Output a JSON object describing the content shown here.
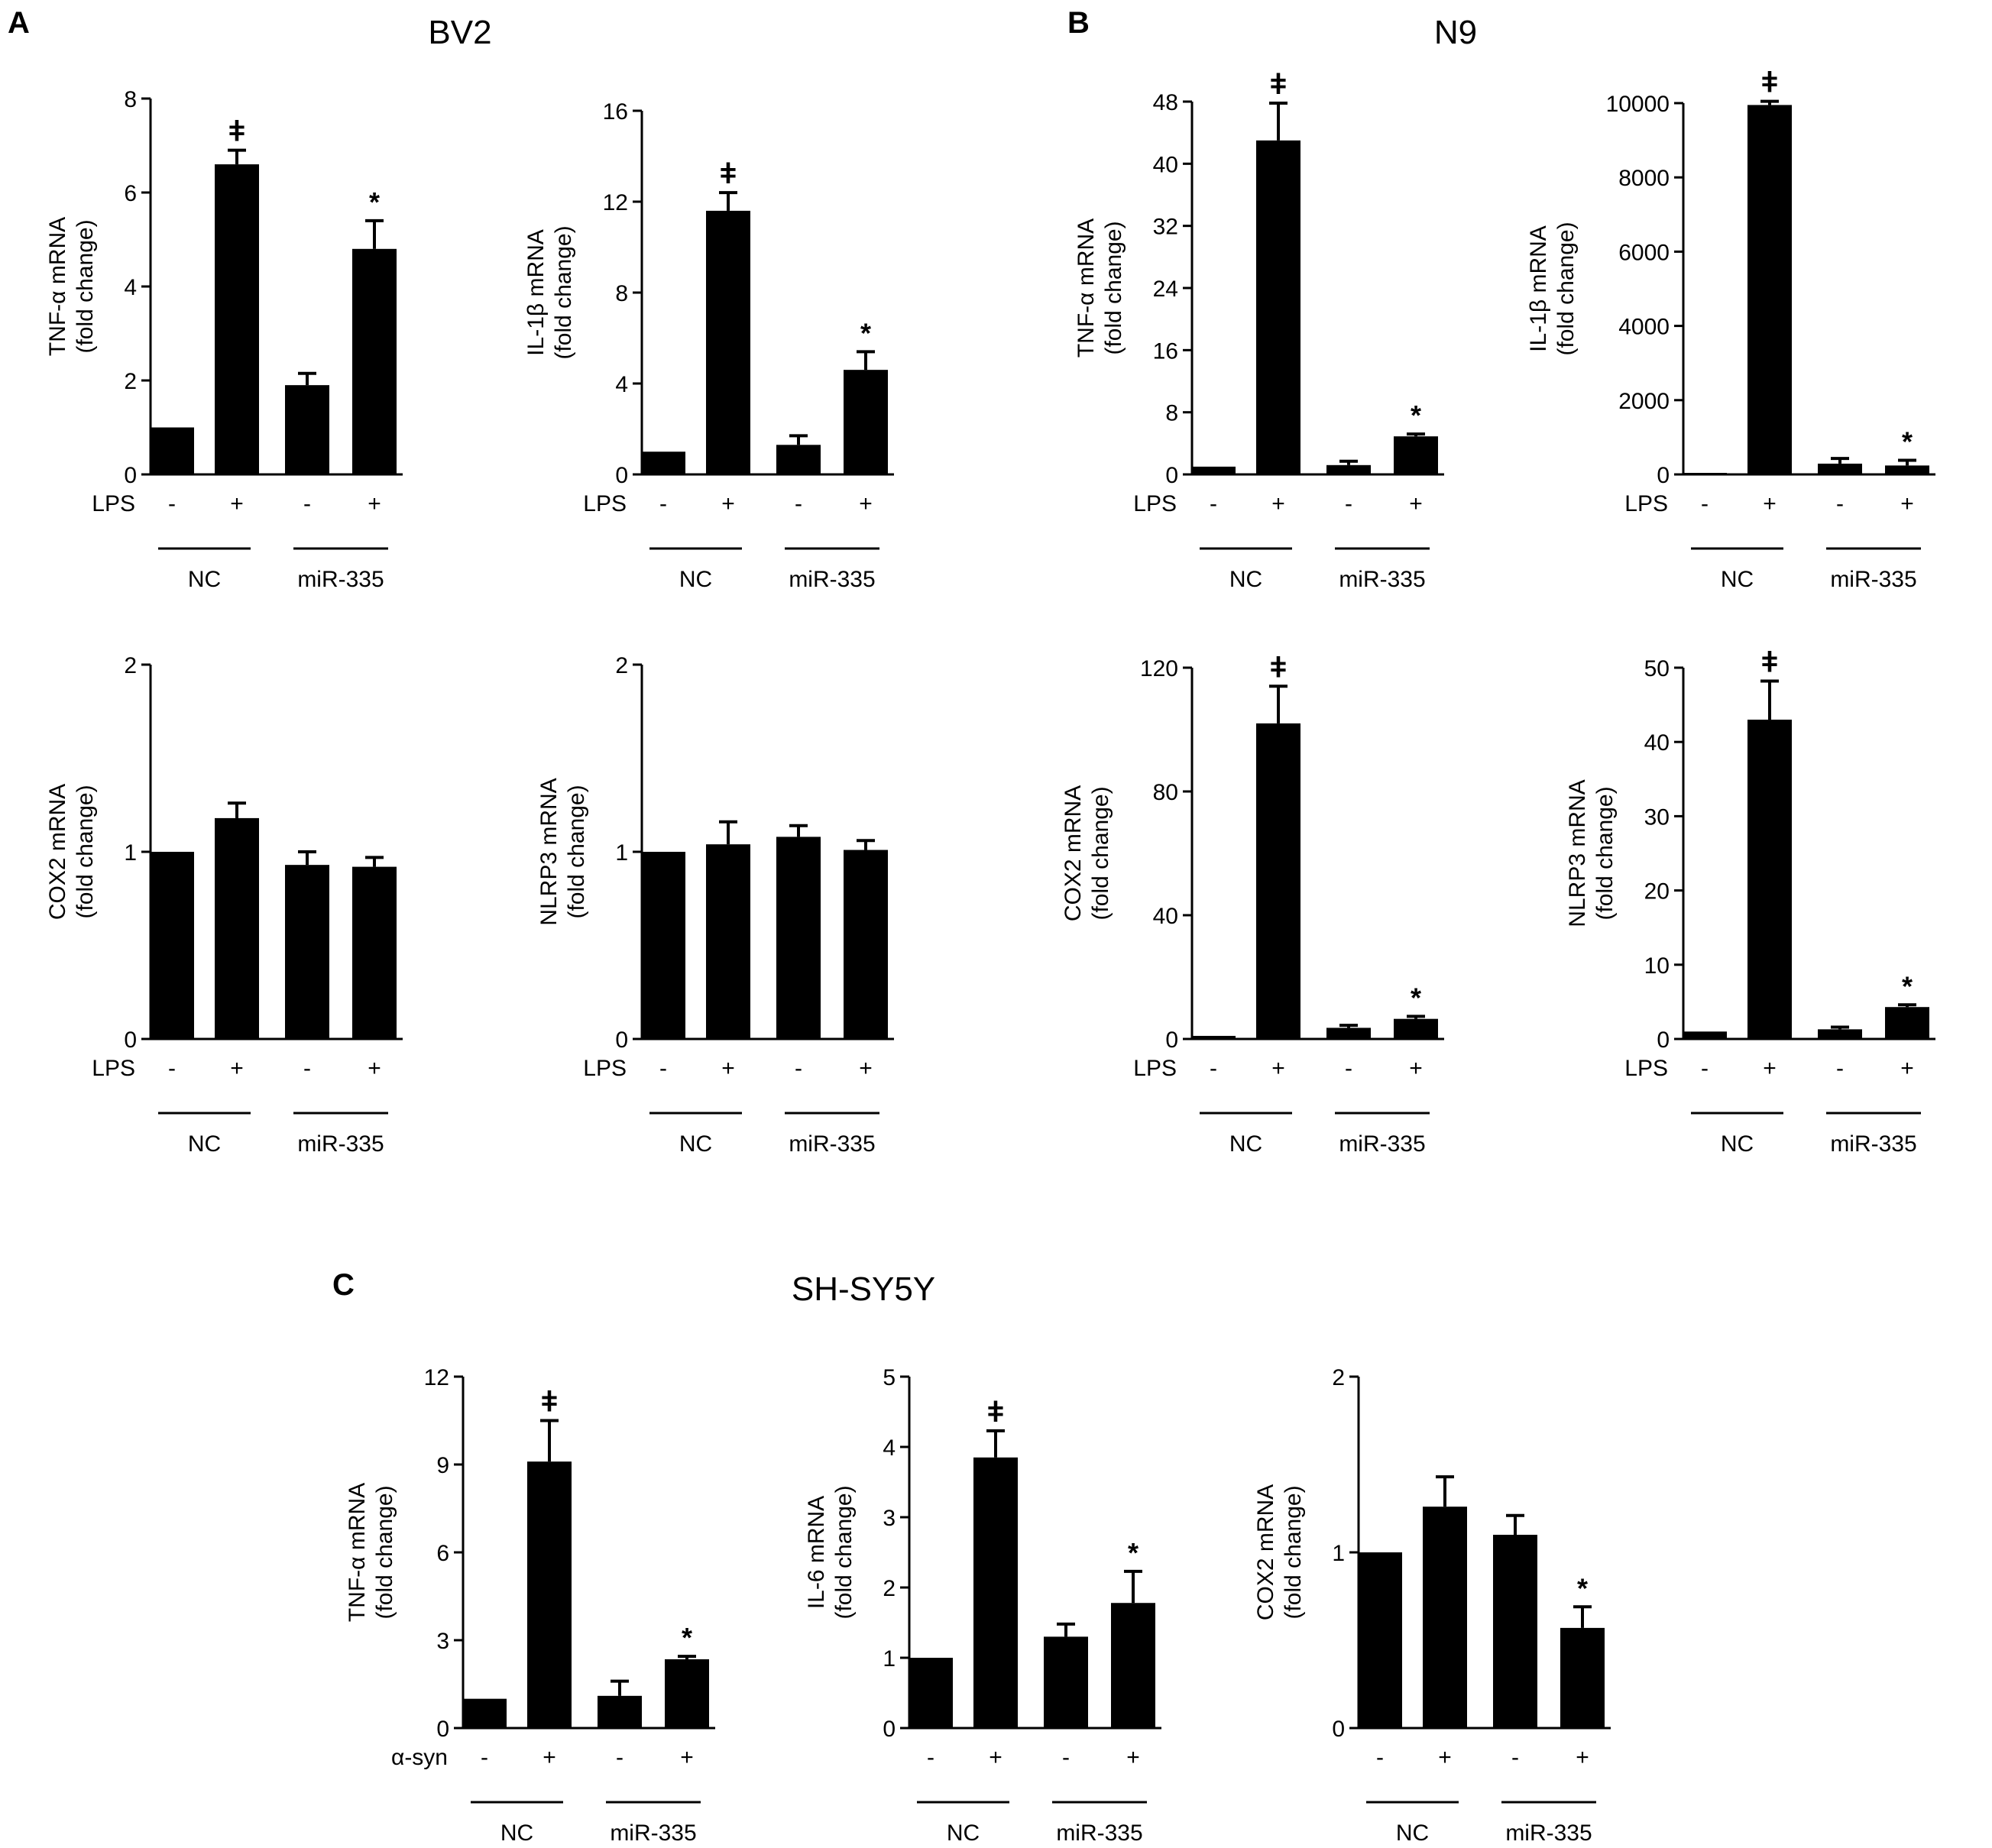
{
  "figure": {
    "panels": [
      {
        "letter": "A",
        "title": "BV2"
      },
      {
        "letter": "B",
        "title": "N9"
      },
      {
        "letter": "C",
        "title": "SH-SY5Y"
      }
    ],
    "colors": {
      "bar": "#000000",
      "axis": "#000000",
      "background": "#ffffff"
    }
  },
  "chart_data": [
    {
      "id": "A1",
      "panel": "A",
      "type": "bar",
      "ylabel": [
        "TNF-α mRNA",
        "(fold change)"
      ],
      "ylim": [
        0,
        8
      ],
      "yticks": [
        0,
        2,
        4,
        6,
        8
      ],
      "treatment": "LPS",
      "categories": [
        "-",
        "+",
        "-",
        "+"
      ],
      "groups": [
        "NC",
        "miR-335"
      ],
      "values": [
        1.0,
        6.6,
        1.9,
        4.8
      ],
      "errors": [
        0,
        0.3,
        0.25,
        0.6
      ],
      "annotations": [
        "",
        "ǂ",
        "",
        "*"
      ]
    },
    {
      "id": "A2",
      "panel": "A",
      "type": "bar",
      "ylabel": [
        "IL-1β mRNA",
        "(fold change)"
      ],
      "ylim": [
        0,
        16
      ],
      "yticks": [
        0,
        4,
        8,
        12,
        16
      ],
      "treatment": "LPS",
      "categories": [
        "-",
        "+",
        "-",
        "+"
      ],
      "groups": [
        "NC",
        "miR-335"
      ],
      "values": [
        1.0,
        11.6,
        1.3,
        4.6
      ],
      "errors": [
        0,
        0.8,
        0.4,
        0.8
      ],
      "annotations": [
        "",
        "ǂ",
        "",
        "*"
      ]
    },
    {
      "id": "A3",
      "panel": "A",
      "type": "bar",
      "ylabel": [
        "COX2 mRNA",
        "(fold change)"
      ],
      "ylim": [
        0,
        2
      ],
      "yticks": [
        0,
        1,
        2
      ],
      "treatment": "LPS",
      "categories": [
        "-",
        "+",
        "-",
        "+"
      ],
      "groups": [
        "NC",
        "miR-335"
      ],
      "values": [
        1.0,
        1.18,
        0.93,
        0.92
      ],
      "errors": [
        0,
        0.08,
        0.07,
        0.05
      ],
      "annotations": [
        "",
        "",
        "",
        ""
      ]
    },
    {
      "id": "A4",
      "panel": "A",
      "type": "bar",
      "ylabel": [
        "NLRP3 mRNA",
        "(fold change)"
      ],
      "ylim": [
        0,
        2
      ],
      "yticks": [
        0,
        1,
        2
      ],
      "treatment": "LPS",
      "categories": [
        "-",
        "+",
        "-",
        "+"
      ],
      "groups": [
        "NC",
        "miR-335"
      ],
      "values": [
        1.0,
        1.04,
        1.08,
        1.01
      ],
      "errors": [
        0,
        0.12,
        0.06,
        0.05
      ],
      "annotations": [
        "",
        "",
        "",
        ""
      ]
    },
    {
      "id": "B1",
      "panel": "B",
      "type": "bar",
      "ylabel": [
        "TNF-α mRNA",
        "(fold change)"
      ],
      "ylim": [
        0,
        48
      ],
      "yticks": [
        0,
        8,
        16,
        24,
        32,
        40,
        48
      ],
      "treatment": "LPS",
      "categories": [
        "-",
        "+",
        "-",
        "+"
      ],
      "groups": [
        "NC",
        "miR-335"
      ],
      "values": [
        1.0,
        43,
        1.2,
        4.9
      ],
      "errors": [
        0,
        4.8,
        0.5,
        0.3
      ],
      "annotations": [
        "",
        "ǂ",
        "",
        "*"
      ]
    },
    {
      "id": "B2",
      "panel": "B",
      "type": "bar",
      "ylabel": [
        "IL-1β mRNA",
        "(fold change)"
      ],
      "ylim": [
        0,
        10000
      ],
      "yticks": [
        0,
        2000,
        4000,
        6000,
        8000,
        10000
      ],
      "treatment": "LPS",
      "categories": [
        "-",
        "+",
        "-",
        "+"
      ],
      "groups": [
        "NC",
        "miR-335"
      ],
      "values": [
        1,
        9950,
        290,
        240
      ],
      "errors": [
        0,
        100,
        140,
        140
      ],
      "annotations": [
        "",
        "ǂ",
        "",
        "*"
      ]
    },
    {
      "id": "B3",
      "panel": "B",
      "type": "bar",
      "ylabel": [
        "COX2 mRNA",
        "(fold change)"
      ],
      "ylim": [
        0,
        120
      ],
      "yticks": [
        0,
        40,
        80,
        120
      ],
      "treatment": "LPS",
      "categories": [
        "-",
        "+",
        "-",
        "+"
      ],
      "groups": [
        "NC",
        "miR-335"
      ],
      "values": [
        1.0,
        102,
        3.6,
        6.5
      ],
      "errors": [
        0,
        12,
        0.8,
        0.8
      ],
      "annotations": [
        "",
        "ǂ",
        "",
        "*"
      ]
    },
    {
      "id": "B4",
      "panel": "B",
      "type": "bar",
      "ylabel": [
        "NLRP3 mRNA",
        "(fold change)"
      ],
      "ylim": [
        0,
        50
      ],
      "yticks": [
        0,
        10,
        20,
        30,
        40,
        50
      ],
      "treatment": "LPS",
      "categories": [
        "-",
        "+",
        "-",
        "+"
      ],
      "groups": [
        "NC",
        "miR-335"
      ],
      "values": [
        1.0,
        43,
        1.3,
        4.3
      ],
      "errors": [
        0,
        5.2,
        0.3,
        0.3
      ],
      "annotations": [
        "",
        "ǂ",
        "",
        "*"
      ]
    },
    {
      "id": "C1",
      "panel": "C",
      "type": "bar",
      "ylabel": [
        "TNF-α mRNA",
        "(fold change)"
      ],
      "ylim": [
        0,
        12
      ],
      "yticks": [
        0,
        3,
        6,
        9,
        12
      ],
      "treatment": "α-syn",
      "categories": [
        "-",
        "+",
        "-",
        "+"
      ],
      "groups": [
        "NC",
        "miR-335"
      ],
      "values": [
        1.0,
        9.1,
        1.1,
        2.35
      ],
      "errors": [
        0,
        1.4,
        0.5,
        0.1
      ],
      "annotations": [
        "",
        "ǂ",
        "",
        "*"
      ]
    },
    {
      "id": "C2",
      "panel": "C",
      "type": "bar",
      "ylabel": [
        "IL-6 mRNA",
        "(fold change)"
      ],
      "ylim": [
        0,
        5
      ],
      "yticks": [
        0,
        1,
        2,
        3,
        4,
        5
      ],
      "treatment": "",
      "categories": [
        "-",
        "+",
        "-",
        "+"
      ],
      "groups": [
        "NC",
        "miR-335"
      ],
      "values": [
        1.0,
        3.85,
        1.3,
        1.78
      ],
      "errors": [
        0,
        0.38,
        0.18,
        0.45
      ],
      "annotations": [
        "",
        "ǂ",
        "",
        "*"
      ]
    },
    {
      "id": "C3",
      "panel": "C",
      "type": "bar",
      "ylabel": [
        "COX2 mRNA",
        "(fold change)"
      ],
      "ylim": [
        0,
        2
      ],
      "yticks": [
        0,
        1,
        2
      ],
      "treatment": "",
      "categories": [
        "-",
        "+",
        "-",
        "+"
      ],
      "groups": [
        "NC",
        "miR-335"
      ],
      "values": [
        1.0,
        1.26,
        1.1,
        0.57
      ],
      "errors": [
        0,
        0.17,
        0.11,
        0.12
      ],
      "annotations": [
        "",
        "",
        "",
        "*"
      ]
    }
  ]
}
